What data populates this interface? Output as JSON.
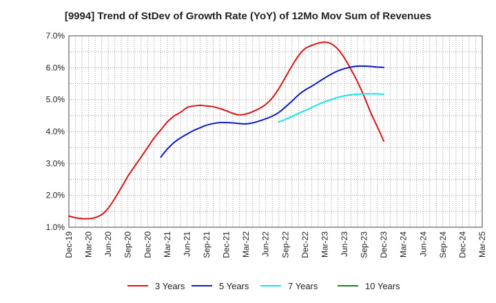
{
  "chart_data": {
    "type": "line",
    "title": "[9994]  Trend of StDev of Growth Rate (YoY) of 12Mo Mov Sum of Revenues",
    "xlabel": "",
    "ylabel": "",
    "ylim": [
      1.0,
      7.0
    ],
    "yticks": [
      1.0,
      2.0,
      3.0,
      4.0,
      5.0,
      6.0,
      7.0
    ],
    "ytick_labels": [
      "1.0%",
      "2.0%",
      "3.0%",
      "4.0%",
      "5.0%",
      "6.0%",
      "7.0%"
    ],
    "x_categories": [
      "Dec-19",
      "Mar-20",
      "Jun-20",
      "Sep-20",
      "Dec-20",
      "Mar-21",
      "Jun-21",
      "Sep-21",
      "Dec-21",
      "Mar-22",
      "Jun-22",
      "Sep-22",
      "Dec-22",
      "Mar-23",
      "Jun-23",
      "Sep-23",
      "Dec-23",
      "Mar-24",
      "Jun-24",
      "Sep-24",
      "Dec-24",
      "Mar-25"
    ],
    "grid": true,
    "legend_position": "bottom",
    "series": [
      {
        "name": "3 Years",
        "color": "#dd1111",
        "points": [
          [
            0,
            1.35
          ],
          [
            0.33,
            1.3
          ],
          [
            0.67,
            1.27
          ],
          [
            1,
            1.27
          ],
          [
            1.33,
            1.3
          ],
          [
            1.67,
            1.4
          ],
          [
            2,
            1.6
          ],
          [
            2.33,
            1.9
          ],
          [
            2.67,
            2.25
          ],
          [
            3,
            2.6
          ],
          [
            3.33,
            2.9
          ],
          [
            3.67,
            3.2
          ],
          [
            4,
            3.5
          ],
          [
            4.33,
            3.8
          ],
          [
            4.67,
            4.05
          ],
          [
            5,
            4.3
          ],
          [
            5.33,
            4.48
          ],
          [
            5.67,
            4.6
          ],
          [
            6,
            4.75
          ],
          [
            6.33,
            4.8
          ],
          [
            6.67,
            4.82
          ],
          [
            7,
            4.8
          ],
          [
            7.33,
            4.78
          ],
          [
            7.67,
            4.72
          ],
          [
            8,
            4.65
          ],
          [
            8.33,
            4.57
          ],
          [
            8.67,
            4.52
          ],
          [
            9,
            4.55
          ],
          [
            9.33,
            4.62
          ],
          [
            9.67,
            4.72
          ],
          [
            10,
            4.85
          ],
          [
            10.33,
            5.05
          ],
          [
            10.67,
            5.35
          ],
          [
            11,
            5.7
          ],
          [
            11.33,
            6.05
          ],
          [
            11.67,
            6.38
          ],
          [
            12,
            6.6
          ],
          [
            12.33,
            6.7
          ],
          [
            12.67,
            6.77
          ],
          [
            13,
            6.8
          ],
          [
            13.33,
            6.75
          ],
          [
            13.67,
            6.58
          ],
          [
            14,
            6.3
          ],
          [
            14.33,
            5.95
          ],
          [
            14.67,
            5.55
          ],
          [
            15,
            5.1
          ],
          [
            15.33,
            4.6
          ],
          [
            15.67,
            4.15
          ],
          [
            16,
            3.7
          ]
        ]
      },
      {
        "name": "5 Years",
        "color": "#0a1ac8",
        "points": [
          [
            4.67,
            3.2
          ],
          [
            5,
            3.45
          ],
          [
            5.33,
            3.65
          ],
          [
            5.67,
            3.8
          ],
          [
            6,
            3.92
          ],
          [
            6.33,
            4.03
          ],
          [
            6.67,
            4.12
          ],
          [
            7,
            4.2
          ],
          [
            7.33,
            4.25
          ],
          [
            7.67,
            4.28
          ],
          [
            8,
            4.28
          ],
          [
            8.33,
            4.27
          ],
          [
            8.67,
            4.25
          ],
          [
            9,
            4.24
          ],
          [
            9.33,
            4.27
          ],
          [
            9.67,
            4.33
          ],
          [
            10,
            4.4
          ],
          [
            10.33,
            4.48
          ],
          [
            10.67,
            4.6
          ],
          [
            11,
            4.77
          ],
          [
            11.33,
            4.95
          ],
          [
            11.67,
            5.15
          ],
          [
            12,
            5.3
          ],
          [
            12.33,
            5.42
          ],
          [
            12.67,
            5.55
          ],
          [
            13,
            5.68
          ],
          [
            13.33,
            5.8
          ],
          [
            13.67,
            5.9
          ],
          [
            14,
            5.97
          ],
          [
            14.33,
            6.02
          ],
          [
            14.67,
            6.05
          ],
          [
            15,
            6.05
          ],
          [
            15.33,
            6.04
          ],
          [
            15.67,
            6.02
          ],
          [
            16,
            6.01
          ]
        ]
      },
      {
        "name": "7 Years",
        "color": "#11e6e6",
        "points": [
          [
            10.67,
            4.3
          ],
          [
            11,
            4.38
          ],
          [
            11.33,
            4.47
          ],
          [
            11.67,
            4.57
          ],
          [
            12,
            4.66
          ],
          [
            12.33,
            4.75
          ],
          [
            12.67,
            4.85
          ],
          [
            13,
            4.93
          ],
          [
            13.33,
            5.0
          ],
          [
            13.67,
            5.07
          ],
          [
            14,
            5.12
          ],
          [
            14.33,
            5.15
          ],
          [
            14.67,
            5.17
          ],
          [
            15,
            5.18
          ],
          [
            15.33,
            5.18
          ],
          [
            15.67,
            5.18
          ],
          [
            16,
            5.17
          ]
        ]
      },
      {
        "name": "10 Years",
        "color": "#118811",
        "points": []
      }
    ]
  }
}
